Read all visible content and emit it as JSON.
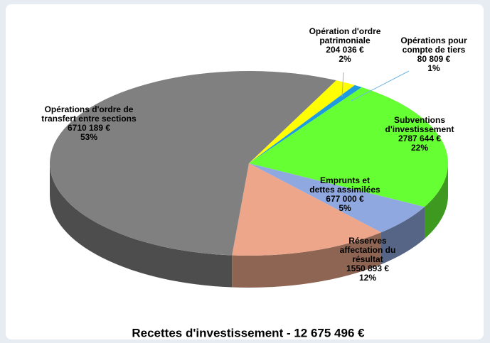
{
  "chart_data": {
    "type": "pie3d",
    "title": "Recettes d'investissement - 12 675 496 €",
    "categories": [
      [
        "Opération d'ordre",
        "patrimoniale"
      ],
      [
        "Opérations pour",
        "compte de tiers"
      ],
      [
        "Subventions",
        "d'investissement"
      ],
      [
        "Emprunts et",
        "dettes assimilées"
      ],
      [
        "Réserves",
        "affectation du",
        "résultat"
      ],
      [
        "Opérations d'ordre de",
        "transfert entre sections"
      ]
    ],
    "values": [
      204036,
      80809,
      2787644,
      677000,
      1550893,
      6710189
    ],
    "value_labels": [
      "204 036 €",
      "80 809 €",
      "2787 644 €",
      "677 000 €",
      "1550 893 €",
      "6710 189 €"
    ],
    "percent_labels": [
      "2%",
      "1%",
      "22%",
      "5%",
      "12%",
      "53%"
    ],
    "colors": [
      "#ffff00",
      "#1e9be0",
      "#66ff33",
      "#8fa8e0",
      "#eda68a",
      "#808080"
    ]
  }
}
